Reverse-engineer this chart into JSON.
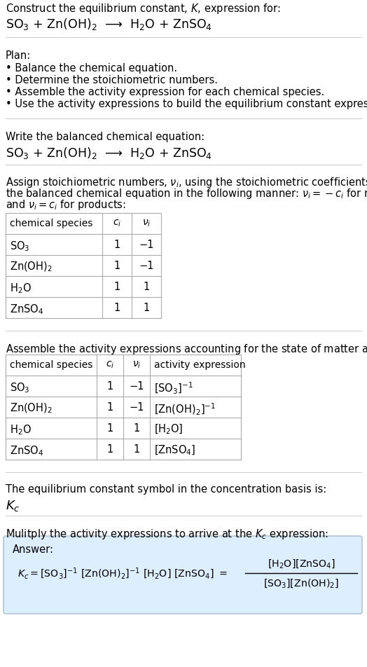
{
  "title_line1": "Construct the equilibrium constant, $K$, expression for:",
  "title_line2": "SO$_3$ + Zn(OH)$_2$  ⟶  H$_2$O + ZnSO$_4$",
  "plan_header": "Plan:",
  "plan_items": [
    "• Balance the chemical equation.",
    "• Determine the stoichiometric numbers.",
    "• Assemble the activity expression for each chemical species.",
    "• Use the activity expressions to build the equilibrium constant expression."
  ],
  "balanced_header": "Write the balanced chemical equation:",
  "balanced_eq": "SO$_3$ + Zn(OH)$_2$  ⟶  H$_2$O + ZnSO$_4$",
  "stoich_intro_lines": [
    "Assign stoichiometric numbers, $\\nu_i$, using the stoichiometric coefficients, $c_i$, from",
    "the balanced chemical equation in the following manner: $\\nu_i = -c_i$ for reactants",
    "and $\\nu_i = c_i$ for products:"
  ],
  "table1_headers": [
    "chemical species",
    "$c_i$",
    "$\\nu_i$"
  ],
  "table1_rows": [
    [
      "SO$_3$",
      "1",
      "−1"
    ],
    [
      "Zn(OH)$_2$",
      "1",
      "−1"
    ],
    [
      "H$_2$O",
      "1",
      "1"
    ],
    [
      "ZnSO$_4$",
      "1",
      "1"
    ]
  ],
  "activity_intro": "Assemble the activity expressions accounting for the state of matter and $\\nu_i$:",
  "table2_headers": [
    "chemical species",
    "$c_i$",
    "$\\nu_i$",
    "activity expression"
  ],
  "table2_rows": [
    [
      "SO$_3$",
      "1",
      "−1",
      "[SO$_3$]$^{-1}$"
    ],
    [
      "Zn(OH)$_2$",
      "1",
      "−1",
      "[Zn(OH)$_2$]$^{-1}$"
    ],
    [
      "H$_2$O",
      "1",
      "1",
      "[H$_2$O]"
    ],
    [
      "ZnSO$_4$",
      "1",
      "1",
      "[ZnSO$_4$]"
    ]
  ],
  "kc_line1": "The equilibrium constant symbol in the concentration basis is:",
  "kc_symbol": "$K_c$",
  "multiply_line": "Mulitply the activity expressions to arrive at the $K_c$ expression:",
  "answer_label": "Answer:",
  "answer_box_color": "#ddeeff",
  "answer_box_edge": "#aabbcc",
  "bg_color": "#ffffff",
  "text_color": "#000000",
  "table_line_color": "#aaaaaa",
  "separator_color": "#cccccc",
  "font_size": 10.5,
  "title_eq_font": 12.5,
  "kc_font": 13.0
}
